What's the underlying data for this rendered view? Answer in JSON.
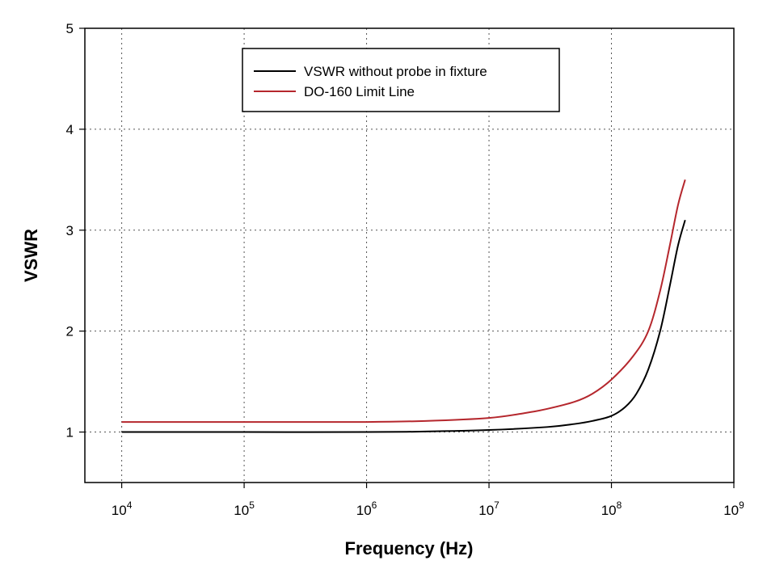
{
  "chart_data": {
    "type": "line",
    "xlabel": "Frequency (Hz)",
    "ylabel": "VSWR",
    "xscale": "log",
    "xlim": [
      5000,
      1000000000
    ],
    "ylim": [
      0.5,
      5
    ],
    "grid": true,
    "legend_position": "top-center",
    "x_ticks": [
      {
        "value": 10000,
        "base": "10",
        "exp": "4"
      },
      {
        "value": 100000,
        "base": "10",
        "exp": "5"
      },
      {
        "value": 1000000,
        "base": "10",
        "exp": "6"
      },
      {
        "value": 10000000,
        "base": "10",
        "exp": "7"
      },
      {
        "value": 100000000,
        "base": "10",
        "exp": "8"
      },
      {
        "value": 1000000000,
        "base": "10",
        "exp": "9"
      }
    ],
    "y_ticks": [
      {
        "value": 1,
        "label": "1"
      },
      {
        "value": 2,
        "label": "2"
      },
      {
        "value": 3,
        "label": "3"
      },
      {
        "value": 4,
        "label": "4"
      },
      {
        "value": 5,
        "label": "5"
      }
    ],
    "series": [
      {
        "name": "VSWR without probe in fixture",
        "color": "#000000",
        "x": [
          10000,
          100000,
          1000000,
          3000000,
          10000000,
          30000000,
          50000000,
          70000000,
          100000000,
          130000000,
          160000000,
          200000000,
          250000000,
          300000000,
          350000000,
          400000000
        ],
        "y": [
          1.0,
          1.0,
          1.0,
          1.005,
          1.02,
          1.05,
          1.08,
          1.11,
          1.16,
          1.25,
          1.38,
          1.62,
          2.0,
          2.45,
          2.85,
          3.1
        ]
      },
      {
        "name": "DO-160 Limit Line",
        "color": "#b5272d",
        "x": [
          10000,
          100000,
          1000000,
          3000000,
          10000000,
          20000000,
          30000000,
          50000000,
          70000000,
          100000000,
          150000000,
          200000000,
          250000000,
          300000000,
          350000000,
          400000000
        ],
        "y": [
          1.1,
          1.1,
          1.1,
          1.11,
          1.14,
          1.19,
          1.23,
          1.3,
          1.38,
          1.52,
          1.75,
          2.0,
          2.4,
          2.85,
          3.25,
          3.5
        ]
      }
    ]
  }
}
